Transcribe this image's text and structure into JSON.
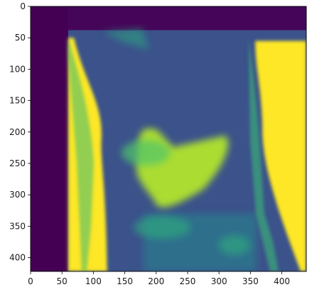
{
  "chart_data": {
    "type": "heatmap",
    "colormap": "viridis",
    "xlim": [
      0,
      439
    ],
    "ylim": [
      422,
      0
    ],
    "y_axis_inverted": true,
    "grid": false,
    "x_ticks": [
      0,
      50,
      100,
      150,
      200,
      250,
      300,
      350,
      400
    ],
    "y_ticks": [
      0,
      50,
      100,
      150,
      200,
      250,
      300,
      350,
      400
    ],
    "x_tick_labels": [
      "0",
      "50",
      "100",
      "150",
      "200",
      "250",
      "300",
      "350",
      "400"
    ],
    "y_tick_labels": [
      "0",
      "50",
      "100",
      "150",
      "200",
      "250",
      "300",
      "350",
      "400"
    ],
    "levels": {
      "min": 0,
      "max": 1
    },
    "regions": [
      {
        "name": "left-dark-band",
        "x": [
          0,
          60
        ],
        "y": [
          0,
          422
        ],
        "level": 0.0
      },
      {
        "name": "top-dark-band",
        "x": [
          60,
          439
        ],
        "y": [
          0,
          38
        ],
        "level": 0.02
      },
      {
        "name": "background-field",
        "x": [
          60,
          439
        ],
        "y": [
          38,
          422
        ],
        "level": 0.25
      },
      {
        "name": "left-bright-band",
        "x": [
          60,
          122
        ],
        "y": [
          50,
          422
        ],
        "level": 1.0
      },
      {
        "name": "right-bright-band",
        "x": [
          360,
          439
        ],
        "y": [
          55,
          422
        ],
        "level": 1.0
      },
      {
        "name": "central-bright-triangle",
        "x": [
          160,
          320
        ],
        "y": [
          190,
          330
        ],
        "level": 0.88
      },
      {
        "name": "lower-mid-band",
        "x": [
          180,
          360
        ],
        "y": [
          330,
          422
        ],
        "level": 0.45
      }
    ]
  }
}
